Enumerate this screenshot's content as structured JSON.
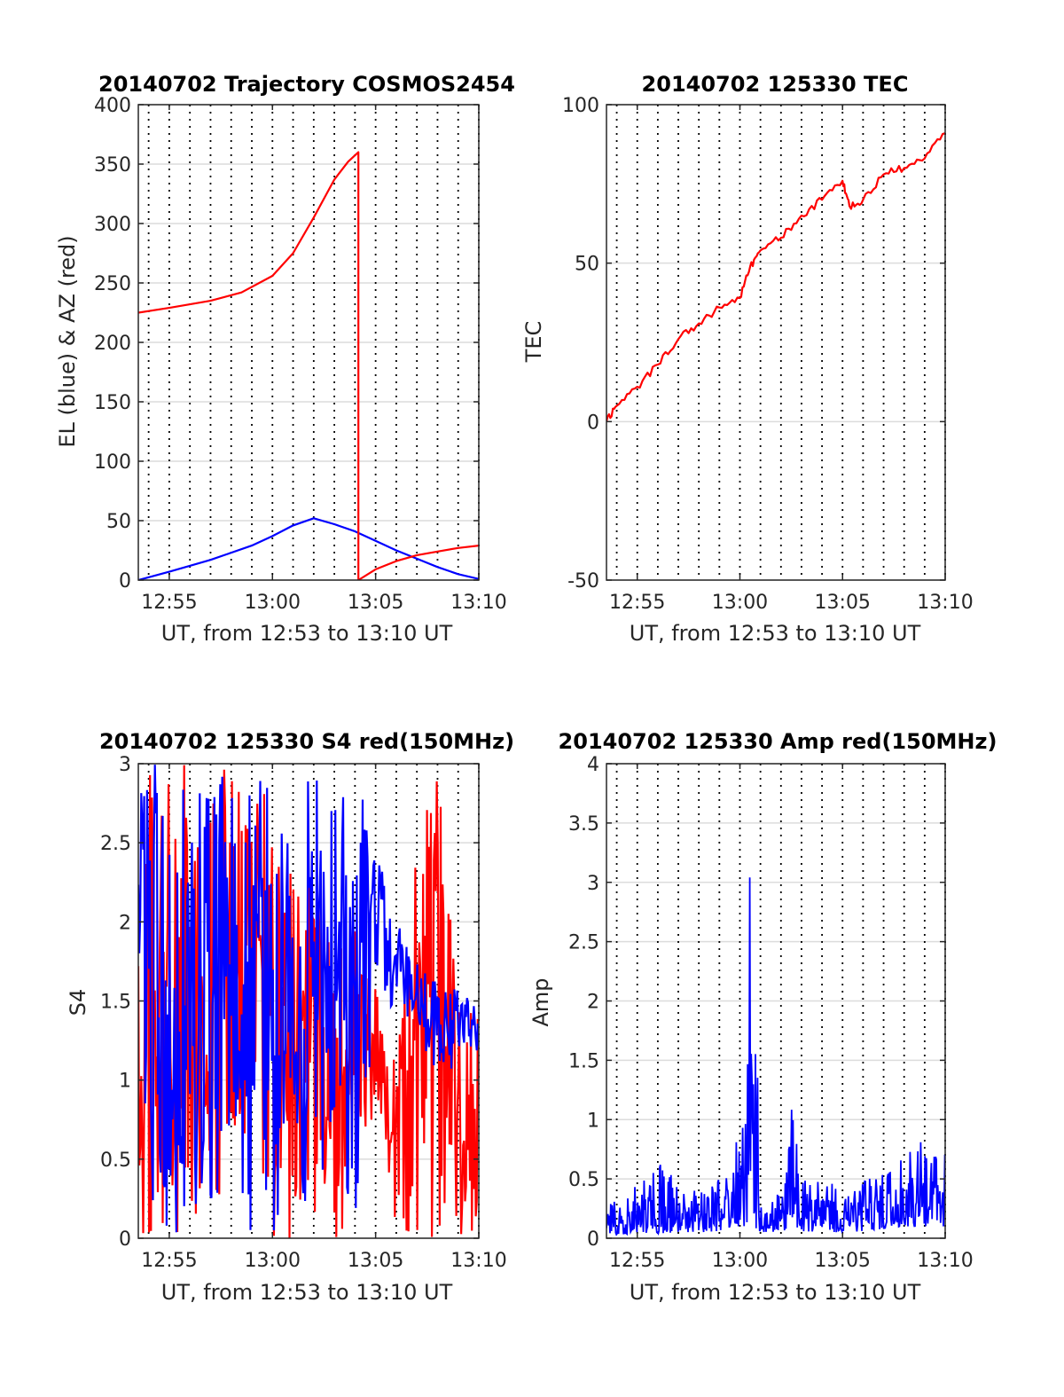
{
  "colors": {
    "el_line": "#0000ff",
    "az_line": "#ff0000",
    "tec_line": "#ff0000",
    "s4_red": "#ff0000",
    "s4_blue": "#0000ff",
    "amp_line": "#0000ff",
    "axes": "#262626",
    "grid_h": "#dcdcdc",
    "grid_v": "#000000",
    "background": "#ffffff"
  },
  "chart_data": [
    {
      "type": "line",
      "title": "20140702 Trajectory COSMOS2454",
      "xlabel": "UT, from 12:53 to 13:10 UT",
      "ylabel": "EL (blue) & AZ (red)",
      "xlim": [
        "12:53:30",
        "13:10:00"
      ],
      "ylim": [
        0,
        400
      ],
      "yticks": [
        0,
        50,
        100,
        150,
        200,
        250,
        300,
        350,
        400
      ],
      "xticks": [
        "12:55",
        "13:00",
        "13:05",
        "13:10"
      ],
      "grid": "on",
      "series": [
        {
          "name": "EL (blue)",
          "color": "#0000ff",
          "x": [
            "12:53:30",
            "12:55:00",
            "12:57:00",
            "12:59:00",
            "13:00:00",
            "13:01:00",
            "13:02:00",
            "13:03:00",
            "13:04:00",
            "13:05:00",
            "13:06:00",
            "13:07:00",
            "13:08:00",
            "13:09:00",
            "13:10:00"
          ],
          "y": [
            0,
            7,
            17,
            29,
            37,
            46,
            52,
            47,
            41,
            33,
            25,
            18,
            11,
            5,
            1
          ]
        },
        {
          "name": "AZ (red)",
          "color": "#ff0000",
          "x": [
            "12:53:30",
            "12:55:00",
            "12:57:00",
            "12:58:30",
            "13:00:00",
            "13:01:00",
            "13:02:00",
            "13:03:00",
            "13:03:40",
            "13:04:10",
            "13:04:10",
            "13:05:00",
            "13:06:00",
            "13:07:00",
            "13:08:00",
            "13:09:00",
            "13:10:00"
          ],
          "y": [
            225,
            229,
            235,
            242,
            256,
            275,
            305,
            337,
            352,
            360,
            0,
            9,
            16,
            21,
            24,
            27,
            29
          ]
        }
      ]
    },
    {
      "type": "line",
      "title": "20140702 125330 TEC",
      "xlabel": "UT, from 12:53 to 13:10 UT",
      "ylabel": "TEC",
      "xlim": [
        "12:53:30",
        "13:10:00"
      ],
      "ylim": [
        -50,
        100
      ],
      "yticks": [
        -50,
        0,
        50,
        100
      ],
      "xticks": [
        "12:55",
        "13:00",
        "13:05",
        "13:10"
      ],
      "grid": "on",
      "series": [
        {
          "name": "TEC",
          "color": "#ff0000",
          "x": [
            "12:53:30",
            "12:54:00",
            "12:55:00",
            "12:56:00",
            "12:57:00",
            "12:58:00",
            "12:59:00",
            "13:00:00",
            "13:00:30",
            "13:01:00",
            "13:02:00",
            "13:03:00",
            "13:04:00",
            "13:05:00",
            "13:05:20",
            "13:06:00",
            "13:07:00",
            "13:08:00",
            "13:09:00",
            "13:10:00"
          ],
          "y": [
            0,
            5,
            11,
            18,
            26,
            31,
            36,
            39,
            49,
            54,
            58,
            65,
            70,
            76,
            68,
            70,
            78,
            80,
            83,
            91
          ]
        }
      ]
    },
    {
      "type": "line",
      "title": "20140702 125330 S4 red(150MHz)",
      "xlabel": "UT, from 12:53 to 13:10 UT",
      "ylabel": "S4",
      "xlim": [
        "12:53:30",
        "13:10:00"
      ],
      "ylim": [
        0,
        3
      ],
      "yticks": [
        0,
        0.5,
        1,
        1.5,
        2,
        2.5,
        3
      ],
      "xticks": [
        "12:55",
        "13:00",
        "13:05",
        "13:10"
      ],
      "grid": "on",
      "series": [
        {
          "name": "red",
          "color": "#ff0000",
          "x": [
            "12:53:30",
            "12:54:00",
            "12:56:00",
            "12:58:00",
            "13:00:00",
            "13:02:00",
            "13:03:00",
            "13:04:00",
            "13:05:00",
            "13:06:00",
            "13:07:00",
            "13:08:00",
            "13:09:00",
            "13:10:00"
          ],
          "y": [
            2.6,
            3.0,
            3.0,
            3.0,
            3.0,
            2.2,
            1.8,
            2.0,
            1.6,
            1.2,
            2.5,
            3.0,
            1.6,
            1.4
          ],
          "min": [
            0,
            0,
            0,
            0,
            0,
            0,
            0,
            0,
            0.85,
            0,
            0,
            0,
            0,
            0
          ]
        },
        {
          "name": "blue",
          "color": "#0000ff",
          "x": [
            "12:53:30",
            "12:54:00",
            "12:56:00",
            "12:58:00",
            "13:00:00",
            "13:01:00",
            "13:02:00",
            "13:03:00",
            "13:04:00",
            "13:05:00",
            "13:06:00",
            "13:07:00",
            "13:08:00",
            "13:09:00",
            "13:10:00"
          ],
          "y": [
            3.0,
            3.0,
            3.0,
            3.0,
            3.0,
            2.6,
            3.0,
            2.8,
            3.0,
            2.5,
            2.0,
            1.8,
            1.6,
            1.6,
            1.5
          ],
          "min": [
            1.8,
            0,
            0,
            0,
            0,
            0.3,
            0,
            0.6,
            0,
            1.6,
            1.4,
            1.3,
            1.0,
            1.1,
            1.2
          ]
        }
      ]
    },
    {
      "type": "line",
      "title": "20140702 125330 Amp red(150MHz)",
      "xlabel": "UT, from 12:53 to 13:10 UT",
      "ylabel": "Amp",
      "xlim": [
        "12:53:30",
        "13:10:00"
      ],
      "ylim": [
        0,
        4
      ],
      "yticks": [
        0,
        0.5,
        1,
        1.5,
        2,
        2.5,
        3,
        3.5,
        4
      ],
      "xticks": [
        "12:55",
        "13:00",
        "13:05",
        "13:10"
      ],
      "grid": "on",
      "series": [
        {
          "name": "Amp",
          "color": "#0000ff",
          "x": [
            "12:53:30",
            "12:54:00",
            "12:55:00",
            "12:56:00",
            "12:57:00",
            "12:58:00",
            "12:59:00",
            "13:00:00",
            "13:00:30",
            "13:01:00",
            "13:02:00",
            "13:02:30",
            "13:03:00",
            "13:04:00",
            "13:05:00",
            "13:06:00",
            "13:07:00",
            "13:08:00",
            "13:09:00",
            "13:10:00"
          ],
          "y": [
            0.3,
            0.4,
            0.45,
            0.8,
            0.42,
            0.4,
            0.5,
            0.95,
            3.32,
            0.35,
            0.38,
            1.19,
            0.55,
            0.5,
            0.45,
            0.5,
            0.55,
            0.8,
            0.92,
            0.7
          ],
          "min": [
            0.02,
            0.03,
            0.04,
            0.04,
            0.05,
            0.05,
            0.06,
            0.1,
            0.1,
            0.05,
            0.05,
            0.1,
            0.06,
            0.05,
            0.05,
            0.06,
            0.08,
            0.1,
            0.1,
            0.1
          ]
        }
      ]
    }
  ]
}
